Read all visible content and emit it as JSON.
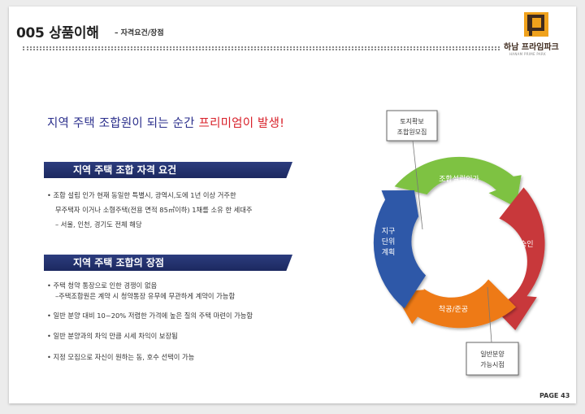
{
  "header": {
    "code": "005 상품이해",
    "subtitle": "– 자격요건/장점"
  },
  "logo": {
    "name": "하남 프라임파크",
    "tagline": "HANAM PRIME PARK"
  },
  "headline": {
    "part1": "지역 주택 조합원이 되는 순간 ",
    "highlight": "프리미엄이 발생!"
  },
  "section1": {
    "title": "지역 주택 조합 자격 요건",
    "bullet1": "•  조합 설립 인가 현재 동일한 특별시, 광역시,도에 1년 이상 거주한",
    "line2": "무주택자 이거나 소형주택(전용 면적 85㎡이하) 1채를  소유 한 세대주",
    "line3": "– 서울, 인천, 경기도 전체 해당"
  },
  "section2": {
    "title": "지역 주택 조합의 장점",
    "bullet1": "•  주택 청약 통장으로 인한 경쟁이 없음",
    "bullet1_sub": "–주택조합원은 계약 시 청약통장 유무에 무관하게 계약이 가능함",
    "bullet2": "•  일반 분양 대비 10~20% 저렴한 가격에 높은 질의 주택 마련이 가능함",
    "bullet3": "•  일반 분양과의 차익 만큼 시세 차익이 보장됨",
    "bullet4": "•  지정 모집으로  자신이 원하는  동, 호수 선택이 가능"
  },
  "cycle": {
    "top_box_line1": "토지확보",
    "top_box_line2": "조합원모집",
    "seg_green": "조합설립인가",
    "seg_red": "사업승인",
    "seg_orange": "착공/준공",
    "seg_blue_1": "지구",
    "seg_blue_2": "단위",
    "seg_blue_3": "계획",
    "bottom_box_line1": "일반분양",
    "bottom_box_line2": "가능시점",
    "colors": {
      "green": "#7ec242",
      "red": "#c8383b",
      "orange": "#ee7a17",
      "blue": "#2f58a8"
    }
  },
  "footer": {
    "page": "PAGE 43"
  }
}
